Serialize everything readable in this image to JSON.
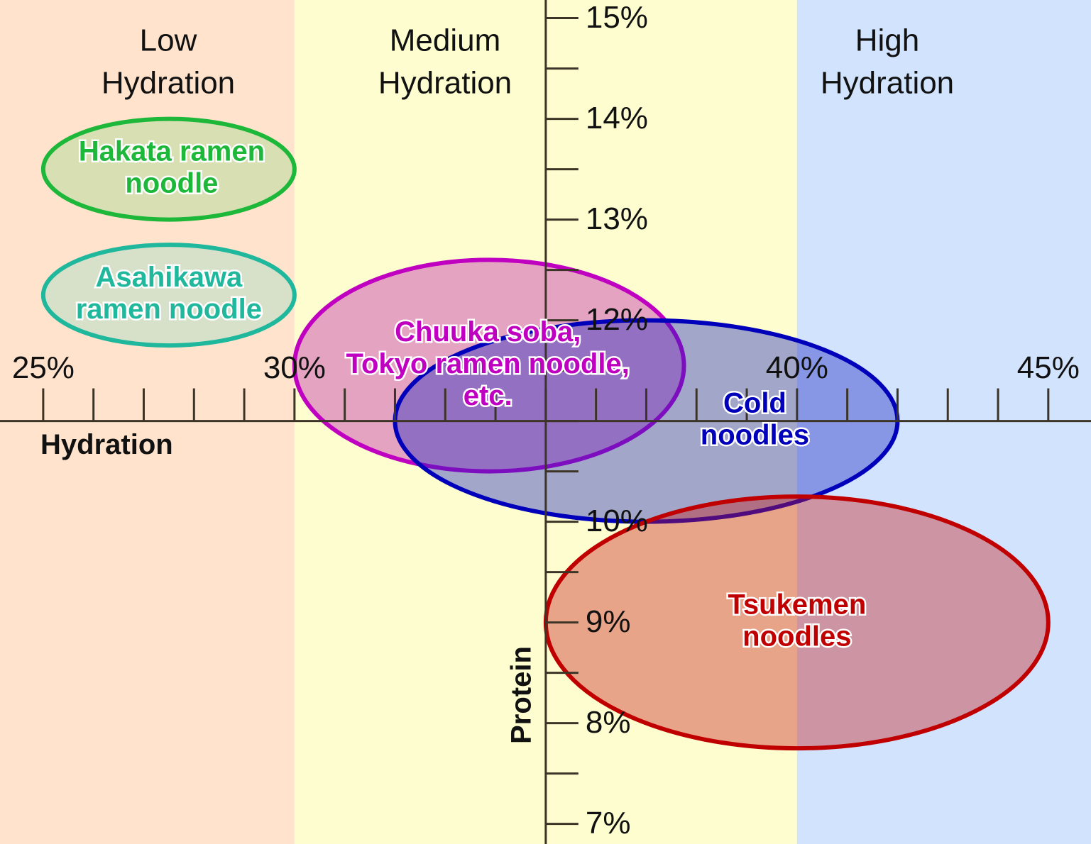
{
  "chart_data": {
    "type": "ellipse-map",
    "xlabel": "Hydration",
    "ylabel": "Protein",
    "xlim": [
      24.14,
      45.85
    ],
    "ylim": [
      6.8,
      15.18
    ],
    "axis_cross": [
      35,
      11
    ],
    "xticks": [
      {
        "value": 25,
        "label": "25%"
      },
      {
        "value": 26,
        "label": null
      },
      {
        "value": 27,
        "label": null
      },
      {
        "value": 28,
        "label": null
      },
      {
        "value": 29,
        "label": null
      },
      {
        "value": 30,
        "label": "30%"
      },
      {
        "value": 31,
        "label": null
      },
      {
        "value": 32,
        "label": null
      },
      {
        "value": 33,
        "label": null
      },
      {
        "value": 34,
        "label": null
      },
      {
        "value": 35,
        "label": null
      },
      {
        "value": 36,
        "label": null
      },
      {
        "value": 37,
        "label": null
      },
      {
        "value": 38,
        "label": null
      },
      {
        "value": 39,
        "label": null
      },
      {
        "value": 40,
        "label": "40%"
      },
      {
        "value": 41,
        "label": null
      },
      {
        "value": 42,
        "label": null
      },
      {
        "value": 43,
        "label": null
      },
      {
        "value": 44,
        "label": null
      },
      {
        "value": 45,
        "label": "45%"
      }
    ],
    "yticks": [
      {
        "value": 7,
        "label": "7%"
      },
      {
        "value": 7.5,
        "label": null
      },
      {
        "value": 8,
        "label": "8%"
      },
      {
        "value": 8.5,
        "label": null
      },
      {
        "value": 9,
        "label": "9%"
      },
      {
        "value": 9.5,
        "label": null
      },
      {
        "value": 10,
        "label": "10%"
      },
      {
        "value": 10.5,
        "label": null
      },
      {
        "value": 11,
        "label": null
      },
      {
        "value": 11.5,
        "label": null
      },
      {
        "value": 12,
        "label": "12%"
      },
      {
        "value": 12.5,
        "label": null
      },
      {
        "value": 13,
        "label": "13%"
      },
      {
        "value": 13.5,
        "label": null
      },
      {
        "value": 14,
        "label": "14%"
      },
      {
        "value": 14.5,
        "label": null
      },
      {
        "value": 15,
        "label": "15%"
      }
    ],
    "zones": [
      {
        "label": [
          "Low",
          "Hydration"
        ],
        "color": "#ffe3cc",
        "range": [
          24.14,
          30
        ]
      },
      {
        "label": [
          "Medium",
          "Hydration"
        ],
        "color": "#fdfdcf",
        "range": [
          30,
          40
        ]
      },
      {
        "label": [
          "High",
          "Hydration"
        ],
        "color": "#d1e3fd",
        "range": [
          40,
          45.85
        ]
      }
    ],
    "groups": [
      {
        "name": [
          "Hakata ramen",
          "noodle"
        ],
        "color": "#1db83a",
        "fill": "#9cd98f",
        "hydration": [
          25,
          30
        ],
        "protein": [
          13,
          14
        ]
      },
      {
        "name": [
          "Asahikawa",
          "ramen noodle"
        ],
        "color": "#1fb89c",
        "fill": "#9cdbc6",
        "hydration": [
          25,
          30
        ],
        "protein": [
          11.75,
          12.75
        ]
      },
      {
        "name": [
          "Chuuka soba,",
          "Tokyo ramen noodle,",
          "etc."
        ],
        "color": "#c000c0",
        "fill": "#c01cb0",
        "hydration": [
          30,
          37.75
        ],
        "protein": [
          10.5,
          12.6
        ]
      },
      {
        "name": [
          "Cold",
          "noodles"
        ],
        "color": "#0000bb",
        "fill": "#1a22c0",
        "hydration": [
          32,
          42
        ],
        "protein": [
          10,
          12
        ]
      },
      {
        "name": [
          "Tsukemen",
          "noodles"
        ],
        "color": "#c00000",
        "fill": "#c81e1e",
        "hydration": [
          35,
          45
        ],
        "protein": [
          7.75,
          10.25
        ]
      }
    ]
  }
}
